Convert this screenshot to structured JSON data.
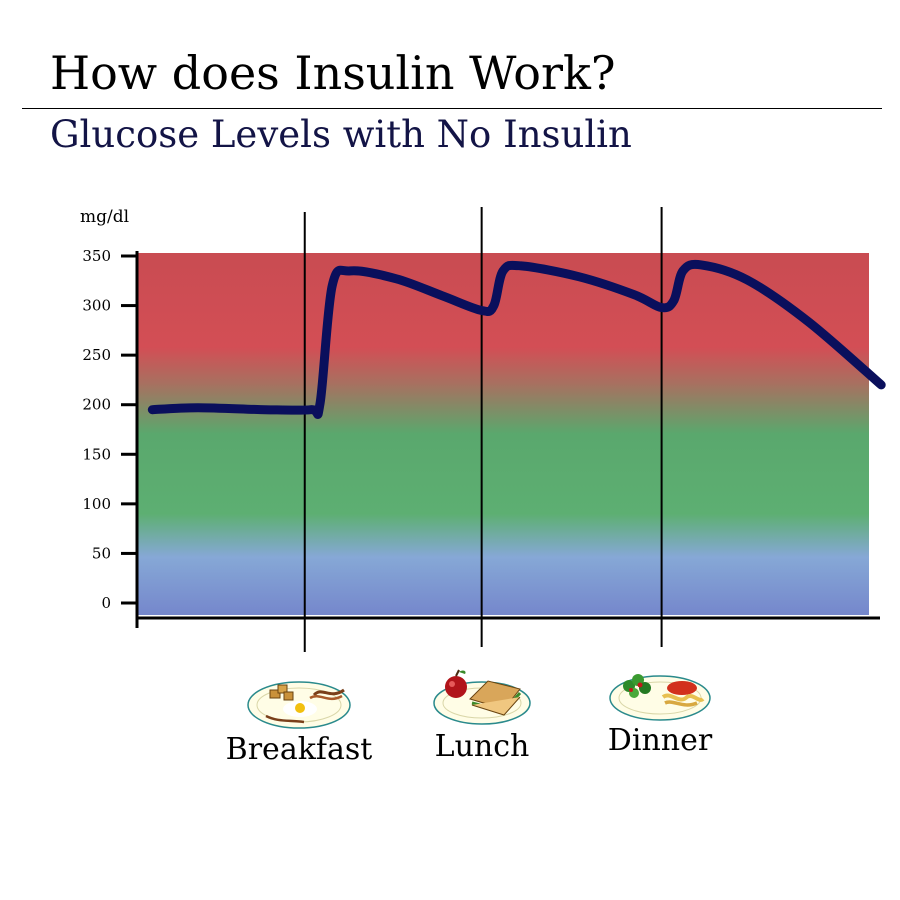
{
  "header": {
    "title": "How does Insulin Work?",
    "subtitle": "Glucose Levels with No Insulin"
  },
  "chart_data": {
    "type": "line",
    "title": "Glucose Levels with No Insulin",
    "ylabel": "mg/dl",
    "xlabel": "",
    "ylim": [
      0,
      350
    ],
    "yticks": [
      0,
      50,
      100,
      150,
      200,
      250,
      300,
      350
    ],
    "x_range": [
      0,
      24
    ],
    "series": [
      {
        "values": [
          {
            "x": 0.5,
            "y": 195
          },
          {
            "x": 2.0,
            "y": 197
          },
          {
            "x": 4.2,
            "y": 195
          },
          {
            "x": 5.7,
            "y": 195
          },
          {
            "x": 6.0,
            "y": 201
          },
          {
            "x": 6.4,
            "y": 320
          },
          {
            "x": 7.0,
            "y": 335
          },
          {
            "x": 8.5,
            "y": 327
          },
          {
            "x": 10.0,
            "y": 310
          },
          {
            "x": 11.3,
            "y": 295
          },
          {
            "x": 11.7,
            "y": 300
          },
          {
            "x": 12.0,
            "y": 335
          },
          {
            "x": 12.6,
            "y": 340
          },
          {
            "x": 14.5,
            "y": 329
          },
          {
            "x": 16.3,
            "y": 311
          },
          {
            "x": 17.2,
            "y": 298
          },
          {
            "x": 17.6,
            "y": 305
          },
          {
            "x": 17.9,
            "y": 335
          },
          {
            "x": 18.5,
            "y": 341
          },
          {
            "x": 20.0,
            "y": 326
          },
          {
            "x": 22.0,
            "y": 284
          },
          {
            "x": 24.4,
            "y": 220
          }
        ],
        "color": "#0a0f5c"
      }
    ],
    "meals": [
      {
        "x": 5.5,
        "label": "Breakfast"
      },
      {
        "x": 11.3,
        "label": "Lunch"
      },
      {
        "x": 17.2,
        "label": "Dinner"
      }
    ],
    "background_bands": [
      {
        "from": 0,
        "to": 50,
        "color": "#7b8fcf"
      },
      {
        "from": 75,
        "to": 150,
        "color": "#5cad70"
      },
      {
        "from": 260,
        "to": 350,
        "color": "#cf4e54"
      }
    ],
    "grid": false
  },
  "colors": {
    "line": "#0a0f5c",
    "subtitle": "#131446",
    "red_zone": "#cf4e54",
    "green_zone": "#5cad70",
    "blue_zone": "#7b8fcf"
  },
  "icons": [
    "breakfast-plate-icon",
    "lunch-plate-icon",
    "dinner-plate-icon"
  ]
}
